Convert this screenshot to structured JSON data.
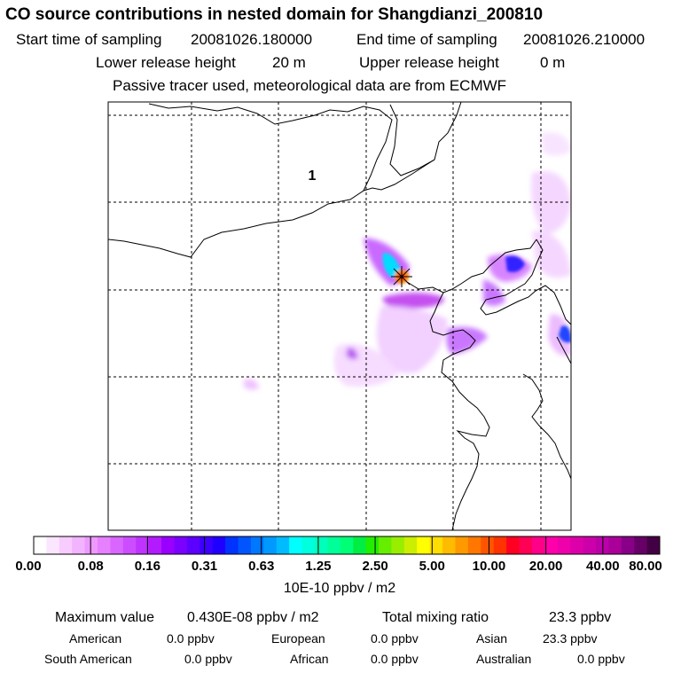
{
  "title": "CO  source contributions in nested domain for Shangdianzi_200810",
  "sampling": {
    "start_label": "Start time of sampling",
    "start_value": "20081026.180000",
    "end_label": "End time of sampling",
    "end_value": "20081026.210000"
  },
  "release": {
    "lower_label": "Lower release height",
    "lower_value": "20 m",
    "upper_label": "Upper release height",
    "upper_value": "0 m"
  },
  "tracer_note": "Passive tracer used, meteorological data are from ECMWF",
  "map": {
    "region_label": "1",
    "receptor_marker": "star-marker"
  },
  "colorbar": {
    "ticks": [
      "0.00",
      "0.08",
      "0.16",
      "0.31",
      "0.63",
      "1.25",
      "2.50",
      "5.00",
      "10.00",
      "20.00",
      "40.00",
      "80.00"
    ],
    "units": "10E-10 ppbv / m2",
    "colors": [
      "#ffffff",
      "#fbe6ff",
      "#f7ccff",
      "#f2b3ff",
      "#ee99ff",
      "#e680ff",
      "#d966ff",
      "#cc4dff",
      "#bf33ff",
      "#b31aff",
      "#9900ff",
      "#7a00ff",
      "#5c00ff",
      "#3d00ff",
      "#1f00ff",
      "#0033ff",
      "#0055ff",
      "#0077ff",
      "#0099ff",
      "#00bbff",
      "#00ffff",
      "#00ffdd",
      "#00ffbb",
      "#00ff99",
      "#00ff77",
      "#00ee44",
      "#22ee00",
      "#66ee00",
      "#99ee00",
      "#ccee00",
      "#ffff00",
      "#ffdd00",
      "#ffbb00",
      "#ff9900",
      "#ff7700",
      "#ff5500",
      "#ff3300",
      "#ff0022",
      "#ff0055",
      "#ff0088",
      "#ff00aa",
      "#ee00aa",
      "#dd00aa",
      "#cc00aa",
      "#bb00aa",
      "#aa0099",
      "#880088",
      "#660066",
      "#440044"
    ]
  },
  "stats": {
    "max_label": "Maximum value",
    "max_value": "0.430E-08 ppbv / m2",
    "total_label": "Total mixing ratio",
    "total_value": "23.3 ppbv"
  },
  "regions": [
    {
      "name": "American",
      "value": "0.0 ppbv"
    },
    {
      "name": "European",
      "value": "0.0 ppbv"
    },
    {
      "name": "Asian",
      "value": "23.3 ppbv"
    },
    {
      "name": "South American",
      "value": "0.0 ppbv"
    },
    {
      "name": "African",
      "value": "0.0 ppbv"
    },
    {
      "name": "Australian",
      "value": "0.0 ppbv"
    }
  ]
}
